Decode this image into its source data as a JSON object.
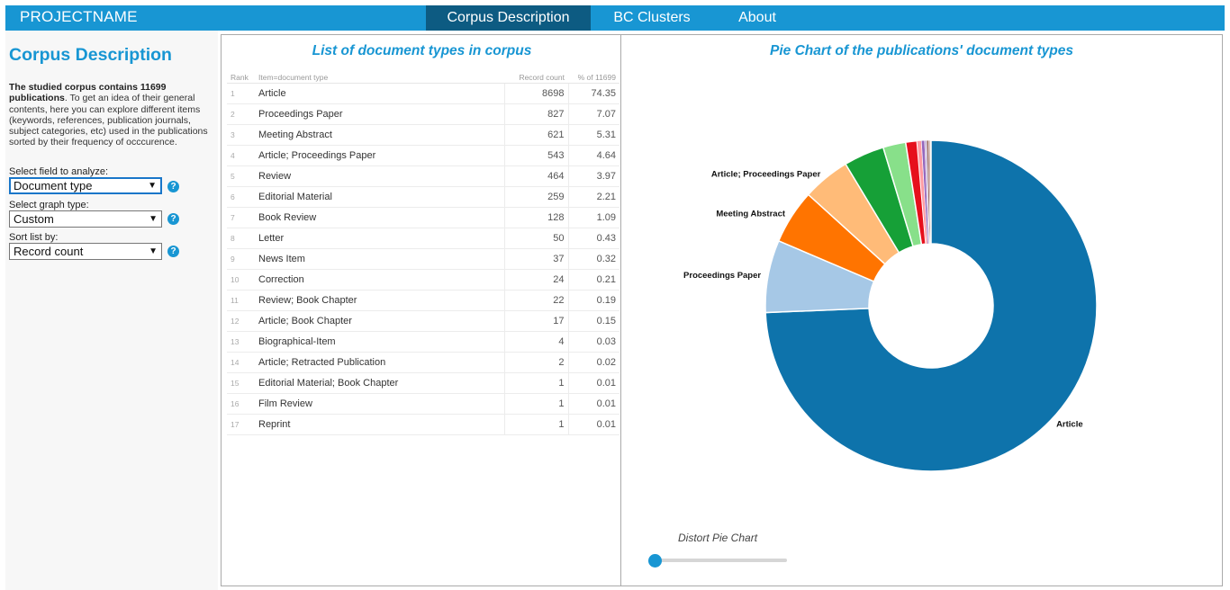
{
  "nav": {
    "project": "PROJECTNAME",
    "items": [
      {
        "label": "Corpus Description",
        "active": true
      },
      {
        "label": "BC Clusters",
        "active": false
      },
      {
        "label": "About",
        "active": false
      }
    ]
  },
  "sidebar": {
    "title": "Corpus Description",
    "intro_bold": "The studied corpus contains 11699 publications",
    "intro_rest": ". To get an idea of their general contents, here you can explore different items (keywords, references, publication journals, subject categories, etc) used in the publications sorted by their frequency of occcurence.",
    "field_label": "Select field to analyze:",
    "field_value": "Document type",
    "graph_label": "Select graph type:",
    "graph_value": "Custom",
    "sort_label": "Sort list by:",
    "sort_value": "Record count",
    "help_glyph": "?"
  },
  "table": {
    "title": "List of document types in corpus",
    "headers": [
      "Rank",
      "Item=document type",
      "Record count",
      "% of 11699"
    ],
    "rows": [
      {
        "rank": "1",
        "item": "Article",
        "count": "8698",
        "pct": "74.35"
      },
      {
        "rank": "2",
        "item": "Proceedings Paper",
        "count": "827",
        "pct": "7.07"
      },
      {
        "rank": "3",
        "item": "Meeting Abstract",
        "count": "621",
        "pct": "5.31"
      },
      {
        "rank": "4",
        "item": "Article; Proceedings Paper",
        "count": "543",
        "pct": "4.64"
      },
      {
        "rank": "5",
        "item": "Review",
        "count": "464",
        "pct": "3.97"
      },
      {
        "rank": "6",
        "item": "Editorial Material",
        "count": "259",
        "pct": "2.21"
      },
      {
        "rank": "7",
        "item": "Book Review",
        "count": "128",
        "pct": "1.09"
      },
      {
        "rank": "8",
        "item": "Letter",
        "count": "50",
        "pct": "0.43"
      },
      {
        "rank": "9",
        "item": "News Item",
        "count": "37",
        "pct": "0.32"
      },
      {
        "rank": "10",
        "item": "Correction",
        "count": "24",
        "pct": "0.21"
      },
      {
        "rank": "11",
        "item": "Review; Book Chapter",
        "count": "22",
        "pct": "0.19"
      },
      {
        "rank": "12",
        "item": "Article; Book Chapter",
        "count": "17",
        "pct": "0.15"
      },
      {
        "rank": "13",
        "item": "Biographical-Item",
        "count": "4",
        "pct": "0.03"
      },
      {
        "rank": "14",
        "item": "Article; Retracted Publication",
        "count": "2",
        "pct": "0.02"
      },
      {
        "rank": "15",
        "item": "Editorial Material; Book Chapter",
        "count": "1",
        "pct": "0.01"
      },
      {
        "rank": "16",
        "item": "Film Review",
        "count": "1",
        "pct": "0.01"
      },
      {
        "rank": "17",
        "item": "Reprint",
        "count": "1",
        "pct": "0.01"
      }
    ]
  },
  "chart": {
    "title": "Pie Chart of the publications' document types",
    "distort_label": "Distort Pie Chart",
    "distort_value": 0
  },
  "chart_data": {
    "type": "pie",
    "donut": true,
    "categories": [
      "Article",
      "Proceedings Paper",
      "Meeting Abstract",
      "Article; Proceedings Paper",
      "Review",
      "Editorial Material",
      "Book Review",
      "Letter",
      "News Item",
      "Correction",
      "Review; Book Chapter",
      "Article; Book Chapter",
      "Biographical-Item",
      "Article; Retracted Publication",
      "Editorial Material; Book Chapter",
      "Film Review",
      "Reprint"
    ],
    "values": [
      8698,
      827,
      621,
      543,
      464,
      259,
      128,
      50,
      37,
      24,
      22,
      17,
      4,
      2,
      1,
      1,
      1
    ],
    "labeled": [
      "Article",
      "Proceedings Paper",
      "Meeting Abstract",
      "Article; Proceedings Paper"
    ],
    "colors": [
      "#0e73ab",
      "#a6c8e6",
      "#ff7400",
      "#ffbb78",
      "#16a037",
      "#88e08a",
      "#e6101c",
      "#ff9ca3",
      "#9467bd",
      "#c5b0d5",
      "#8c564b",
      "#c49c94",
      "#e377c2",
      "#f7b6d2",
      "#7f7f7f",
      "#c7c7c7",
      "#bcbd22"
    ]
  }
}
